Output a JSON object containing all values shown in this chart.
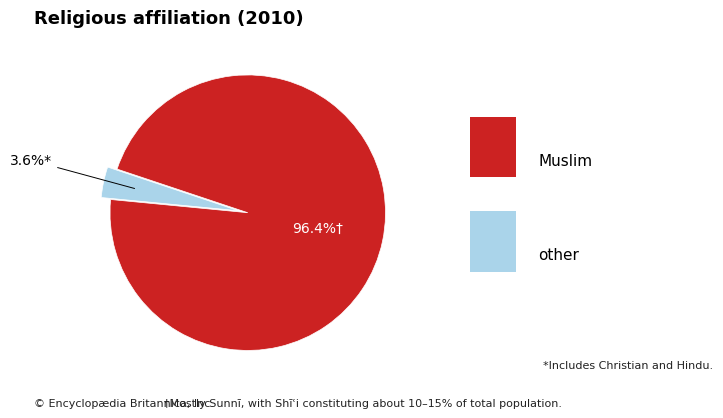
{
  "title": "Religious affiliation (2010)",
  "slices": [
    96.4,
    3.6
  ],
  "labels": [
    "Muslim",
    "other"
  ],
  "colors": [
    "#cc2222",
    "#aad4ea"
  ],
  "label_muslim": "96.4%†",
  "label_other": "3.6%*",
  "footnote_line1": "*Includes Christian and Hindu.",
  "footnote_line2": "†Mostly Sunnī, with Shīʿi constituting about 10–15% of total population.",
  "copyright": "© Encyclopædia Britannica, Inc.",
  "background_color": "#ffffff",
  "title_fontsize": 13,
  "legend_fontsize": 11,
  "annotation_fontsize": 10,
  "footnote_fontsize": 8,
  "startangle": 96.5,
  "explode_other": 0.07
}
